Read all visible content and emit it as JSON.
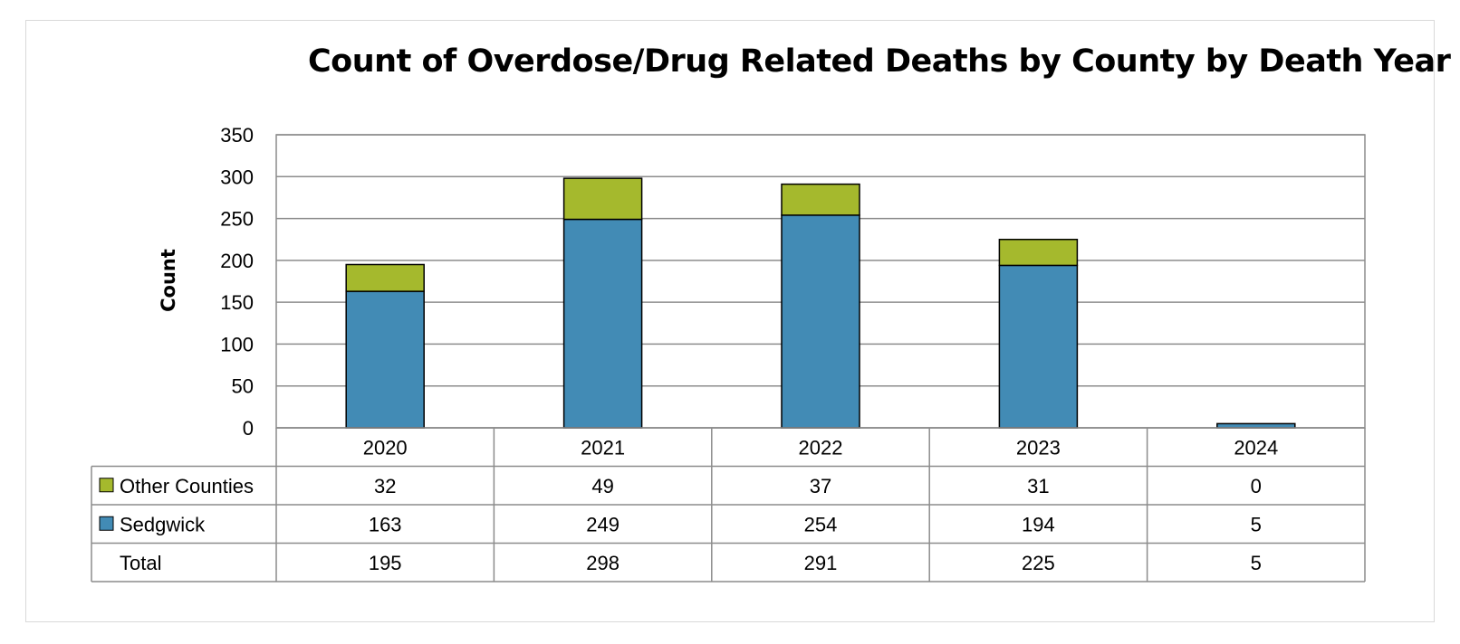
{
  "chart_data": {
    "type": "bar",
    "stacked": true,
    "title": "Count of Overdose/Drug Related Deaths by County by Death Year",
    "ylabel": "Count",
    "xlabel": "",
    "categories": [
      "2020",
      "2021",
      "2022",
      "2023",
      "2024"
    ],
    "ylim": [
      0,
      350
    ],
    "yticks": [
      0,
      50,
      100,
      150,
      200,
      250,
      300,
      350
    ],
    "grid": true,
    "series": [
      {
        "name": "Sedgwick",
        "values": [
          163,
          249,
          254,
          194,
          5
        ],
        "color": "#428bb5"
      },
      {
        "name": "Other Counties",
        "values": [
          32,
          49,
          37,
          31,
          0
        ],
        "color": "#a5b92d"
      }
    ],
    "data_table": {
      "rows": [
        {
          "label": "Other Counties",
          "series_index": 1,
          "values": [
            "32",
            "49",
            "37",
            "31",
            "0"
          ]
        },
        {
          "label": "Sedgwick",
          "series_index": 0,
          "values": [
            "163",
            "249",
            "254",
            "194",
            "5"
          ]
        },
        {
          "label": "Total",
          "series_index": null,
          "values": [
            "195",
            "298",
            "291",
            "225",
            "5"
          ]
        }
      ]
    }
  }
}
